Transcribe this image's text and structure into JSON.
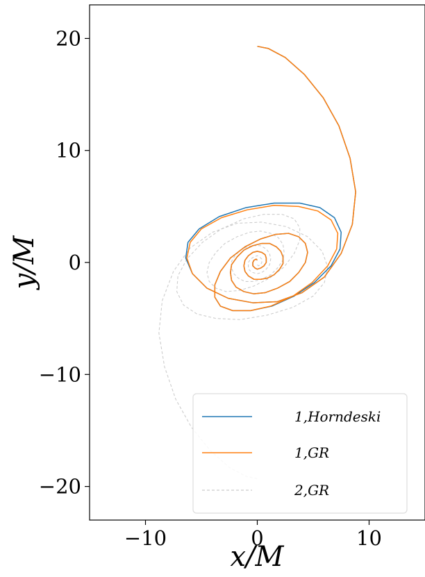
{
  "chart_data": {
    "type": "line",
    "title": "",
    "xlabel": "x/M",
    "ylabel": "y/M",
    "xlim": [
      -15,
      15
    ],
    "ylim": [
      -23,
      23
    ],
    "xticks": [
      -10,
      0,
      10
    ],
    "yticks": [
      -20,
      -10,
      0,
      10,
      20
    ],
    "xtick_labels": [
      "−10",
      "0",
      "10"
    ],
    "ytick_labels": [
      "−20",
      "−10",
      "0",
      "10",
      "20"
    ],
    "grid": false,
    "legend_position": "lower-right",
    "series": [
      {
        "name": "1,Horndeski",
        "color": "#1f77b4",
        "style": "solid",
        "x": [
          0,
          1.0,
          2.5,
          4.2,
          5.9,
          7.3,
          8.3,
          8.8,
          8.5,
          7.5,
          6.0,
          4.0,
          1.8,
          -0.4,
          -2.6,
          -4.5,
          -5.8,
          -6.4,
          -6.2,
          -5.2,
          -3.4,
          -1.0,
          1.5,
          3.8,
          5.6,
          6.9,
          7.5,
          7.4,
          6.6,
          5.1,
          3.3,
          1.3,
          -0.6,
          -2.2,
          -3.3,
          -3.8,
          -3.8,
          -3.3,
          -2.4,
          -1.1,
          0.3,
          1.6,
          2.8,
          3.7,
          4.3,
          4.5,
          4.3,
          3.7,
          2.9,
          1.8,
          0.7,
          -0.3,
          -1.2,
          -1.9,
          -2.3,
          -2.4,
          -2.3,
          -1.8,
          -1.2,
          -0.4,
          0.4,
          1.1,
          1.7,
          2.1,
          2.3,
          2.3,
          2.0,
          1.5,
          0.9,
          0.3,
          -0.3,
          -0.8,
          -1.1,
          -1.2,
          -1.1,
          -0.8,
          -0.4,
          0.0,
          0.4,
          0.7,
          0.8,
          0.8,
          0.6,
          0.3,
          0.0,
          -0.2,
          -0.4,
          -0.4,
          -0.3,
          -0.1,
          0.0
        ],
        "y": [
          19.3,
          19.1,
          18.3,
          16.8,
          14.7,
          12.2,
          9.3,
          6.3,
          3.4,
          0.8,
          -1.3,
          -2.7,
          -3.5,
          -3.6,
          -3.2,
          -2.3,
          -1.0,
          0.4,
          1.8,
          3.0,
          4.1,
          4.9,
          5.3,
          5.3,
          4.9,
          4.0,
          2.7,
          1.2,
          -0.3,
          -1.8,
          -3.0,
          -3.9,
          -4.3,
          -4.3,
          -3.9,
          -3.1,
          -2.0,
          -0.8,
          0.4,
          1.4,
          2.1,
          2.5,
          2.6,
          2.3,
          1.7,
          0.9,
          0.0,
          -0.9,
          -1.7,
          -2.3,
          -2.7,
          -2.8,
          -2.6,
          -2.2,
          -1.6,
          -0.9,
          -0.2,
          0.5,
          1.1,
          1.5,
          1.7,
          1.7,
          1.4,
          1.0,
          0.5,
          -0.1,
          -0.6,
          -1.1,
          -1.4,
          -1.5,
          -1.5,
          -1.2,
          -0.8,
          -0.3,
          0.2,
          0.6,
          0.9,
          1.0,
          0.9,
          0.7,
          0.4,
          0.0,
          -0.3,
          -0.5,
          -0.6,
          -0.5,
          -0.3,
          0.0,
          0.2,
          0.3,
          0.2
        ]
      },
      {
        "name": "1,GR",
        "color": "#ff7f0e",
        "style": "solid",
        "x": [
          0,
          1.0,
          2.5,
          4.2,
          5.9,
          7.3,
          8.3,
          8.8,
          8.5,
          7.5,
          6.0,
          4.0,
          1.8,
          -0.4,
          -2.6,
          -4.5,
          -5.8,
          -6.3,
          -6.0,
          -5.0,
          -3.2,
          -0.9,
          1.5,
          3.7,
          5.4,
          6.6,
          7.2,
          7.1,
          6.3,
          4.9,
          3.2,
          1.2,
          -0.6,
          -2.2,
          -3.3,
          -3.8,
          -3.8,
          -3.3,
          -2.4,
          -1.1,
          0.3,
          1.6,
          2.8,
          3.7,
          4.3,
          4.5,
          4.3,
          3.7,
          2.9,
          1.8,
          0.7,
          -0.3,
          -1.2,
          -1.9,
          -2.3,
          -2.4,
          -2.3,
          -1.8,
          -1.2,
          -0.4,
          0.4,
          1.1,
          1.7,
          2.1,
          2.3,
          2.3,
          2.0,
          1.5,
          0.9,
          0.3,
          -0.3,
          -0.8,
          -1.1,
          -1.2,
          -1.1,
          -0.8,
          -0.4,
          0.0,
          0.4,
          0.7,
          0.8,
          0.8,
          0.6,
          0.3,
          0.0,
          -0.2,
          -0.4,
          -0.4,
          -0.3,
          -0.1,
          0.0
        ],
        "y": [
          19.3,
          19.1,
          18.3,
          16.8,
          14.7,
          12.2,
          9.3,
          6.3,
          3.4,
          0.8,
          -1.3,
          -2.7,
          -3.5,
          -3.6,
          -3.2,
          -2.3,
          -1.0,
          0.4,
          1.8,
          3.0,
          4.0,
          4.7,
          5.1,
          5.0,
          4.6,
          3.8,
          2.6,
          1.2,
          -0.3,
          -1.8,
          -3.0,
          -3.9,
          -4.3,
          -4.3,
          -3.9,
          -3.1,
          -2.0,
          -0.8,
          0.4,
          1.4,
          2.1,
          2.5,
          2.6,
          2.3,
          1.7,
          0.9,
          0.0,
          -0.9,
          -1.7,
          -2.3,
          -2.7,
          -2.8,
          -2.6,
          -2.2,
          -1.6,
          -0.9,
          -0.2,
          0.5,
          1.1,
          1.5,
          1.7,
          1.7,
          1.4,
          1.0,
          0.5,
          -0.1,
          -0.6,
          -1.1,
          -1.4,
          -1.5,
          -1.5,
          -1.2,
          -0.8,
          -0.3,
          0.2,
          0.6,
          0.9,
          1.0,
          0.9,
          0.7,
          0.4,
          0.0,
          -0.3,
          -0.5,
          -0.6,
          -0.5,
          -0.3,
          0.0,
          0.2,
          0.3,
          0.2
        ]
      },
      {
        "name": "2,GR",
        "color": "#cccccc",
        "style": "dashed",
        "x": [
          0,
          -1.0,
          -2.5,
          -4.2,
          -5.9,
          -7.3,
          -8.3,
          -8.8,
          -8.5,
          -7.5,
          -6.0,
          -4.0,
          -1.8,
          0.4,
          2.6,
          4.5,
          5.8,
          6.3,
          6.0,
          5.0,
          3.2,
          0.9,
          -1.5,
          -3.7,
          -5.4,
          -6.6,
          -7.2,
          -7.1,
          -6.3,
          -4.9,
          -3.2,
          -1.2,
          0.6,
          2.2,
          3.3,
          3.8,
          3.8,
          3.3,
          2.4,
          1.1,
          -0.3,
          -1.6,
          -2.8,
          -3.7,
          -4.3,
          -4.5,
          -4.3,
          -3.7,
          -2.9,
          -1.8,
          -0.7,
          0.3,
          1.2,
          1.9,
          2.3,
          2.4,
          2.3,
          1.8,
          1.2,
          0.4,
          -0.4,
          -1.1,
          -1.7,
          -2.1,
          -2.3,
          -2.3,
          -2.0,
          -1.5,
          -0.9,
          -0.3,
          0.3,
          0.8,
          1.1,
          1.2,
          1.1,
          0.8,
          0.4,
          0.0,
          -0.4,
          -0.7,
          -0.8,
          -0.8,
          -0.6,
          -0.3,
          0.0,
          0.2,
          0.4,
          0.4,
          0.3,
          0.1,
          0.0
        ],
        "y": [
          -19.3,
          -19.1,
          -18.3,
          -16.8,
          -14.7,
          -12.2,
          -9.3,
          -6.3,
          -3.4,
          -0.8,
          1.3,
          2.7,
          3.5,
          3.6,
          3.2,
          2.3,
          1.0,
          -0.4,
          -1.8,
          -3.0,
          -4.0,
          -4.7,
          -5.1,
          -5.0,
          -4.6,
          -3.8,
          -2.6,
          -1.2,
          0.3,
          1.8,
          3.0,
          3.9,
          4.3,
          4.3,
          3.9,
          3.1,
          2.0,
          0.8,
          -0.4,
          -1.4,
          -2.1,
          -2.5,
          -2.6,
          -2.3,
          -1.7,
          -0.9,
          0.0,
          0.9,
          1.7,
          2.3,
          2.7,
          2.8,
          2.6,
          2.2,
          1.6,
          0.9,
          0.2,
          -0.5,
          -1.1,
          -1.5,
          -1.7,
          -1.7,
          -1.4,
          -1.0,
          -0.5,
          0.1,
          0.6,
          1.1,
          1.4,
          1.5,
          1.5,
          1.2,
          0.8,
          0.3,
          -0.2,
          -0.6,
          -0.9,
          -1.0,
          -0.9,
          -0.7,
          -0.4,
          0.0,
          0.3,
          0.5,
          0.6,
          0.5,
          0.3,
          0.0,
          -0.2,
          -0.3,
          -0.2
        ]
      }
    ],
    "legend_entries": [
      {
        "label": "1,Horndeski",
        "color": "#1f77b4",
        "style": "solid"
      },
      {
        "label": "1,GR",
        "color": "#ff7f0e",
        "style": "solid"
      },
      {
        "label": "2,GR",
        "color": "#cccccc",
        "style": "dashed"
      }
    ]
  }
}
